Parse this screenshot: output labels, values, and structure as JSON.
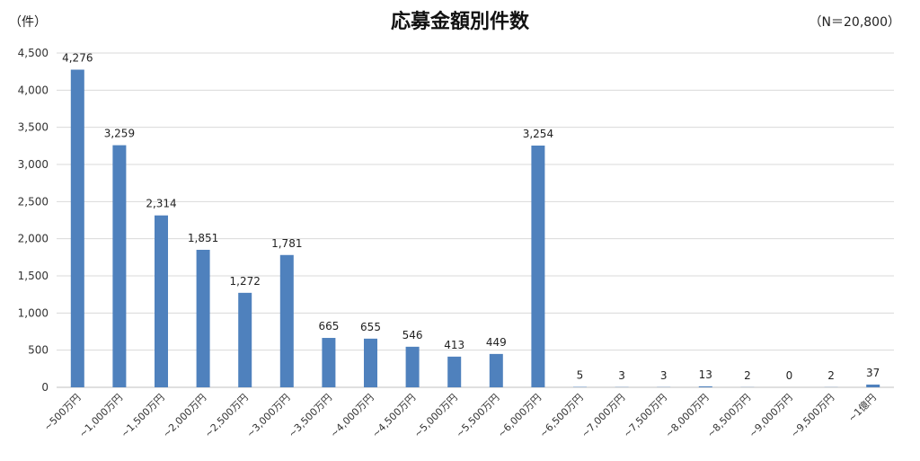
{
  "chart_data": {
    "type": "bar",
    "title": "応募金額別件数",
    "unit_label": "（件）",
    "n_label": "（N＝20,800）",
    "categories": [
      "~500万円",
      "~1,000万円",
      "~1,500万円",
      "~2,000万円",
      "~2,500万円",
      "~3,000万円",
      "~3,500万円",
      "~4,000万円",
      "~4,500万円",
      "~5,000万円",
      "~5,500万円",
      "~6,000万円",
      "~6,500万円",
      "~7,000万円",
      "~7,500万円",
      "~8,000万円",
      "~8,500万円",
      "~9,000万円",
      "~9,500万円",
      "~1億円"
    ],
    "values": [
      4276,
      3259,
      2314,
      1851,
      1272,
      1781,
      665,
      655,
      546,
      413,
      449,
      3254,
      5,
      3,
      3,
      13,
      2,
      0,
      2,
      37
    ],
    "value_labels": [
      "4,276",
      "3,259",
      "2,314",
      "1,851",
      "1,272",
      "1,781",
      "665",
      "655",
      "546",
      "413",
      "449",
      "3,254",
      "5",
      "3",
      "3",
      "13",
      "2",
      "0",
      "2",
      "37"
    ],
    "ylim": [
      0,
      4500
    ],
    "yticks": [
      0,
      500,
      1000,
      1500,
      2000,
      2500,
      3000,
      3500,
      4000,
      4500
    ],
    "ytick_labels": [
      "0",
      "500",
      "1,000",
      "1,500",
      "2,000",
      "2,500",
      "3,000",
      "3,500",
      "4,000",
      "4,500"
    ],
    "grid": true,
    "bar_color": "#4F81BD"
  }
}
